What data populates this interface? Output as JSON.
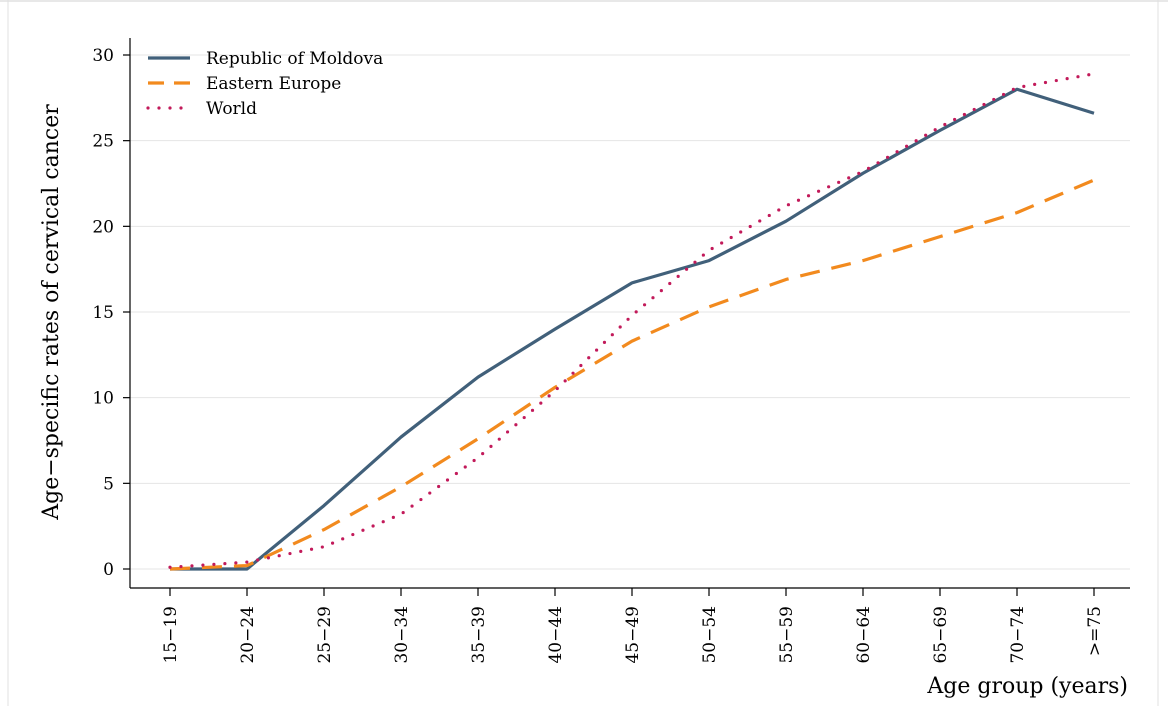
{
  "chart_data": {
    "type": "line",
    "title": "",
    "xlabel": "Age group (years)",
    "ylabel": "Age−specific rates of cervical cancer",
    "categories": [
      "15−19",
      "20−24",
      "25−29",
      "30−34",
      "35−39",
      "40−44",
      "45−49",
      "50−54",
      "55−59",
      "60−64",
      "65−69",
      "70−74",
      ">=75"
    ],
    "ylim": [
      0,
      30
    ],
    "yticks": [
      "0",
      "5",
      "10",
      "15",
      "20",
      "25",
      "30"
    ],
    "grid": true,
    "legend_position": "top-left",
    "series": [
      {
        "name": "Republic of Moldova",
        "style": "solid",
        "color": "#41607a",
        "values": [
          0.0,
          0.0,
          3.7,
          7.7,
          11.2,
          14.0,
          16.7,
          18.0,
          20.3,
          23.1,
          25.6,
          28.0,
          26.6
        ]
      },
      {
        "name": "Eastern Europe",
        "style": "dashed",
        "color": "#f28a1e",
        "values": [
          0.0,
          0.2,
          2.3,
          4.8,
          7.6,
          10.6,
          13.3,
          15.3,
          16.9,
          18.0,
          19.4,
          20.8,
          22.7
        ]
      },
      {
        "name": "World",
        "style": "dotted",
        "color": "#c21a5a",
        "values": [
          0.1,
          0.4,
          1.3,
          3.2,
          6.5,
          10.4,
          14.8,
          18.6,
          21.2,
          23.2,
          25.8,
          28.1,
          28.9
        ]
      }
    ]
  }
}
